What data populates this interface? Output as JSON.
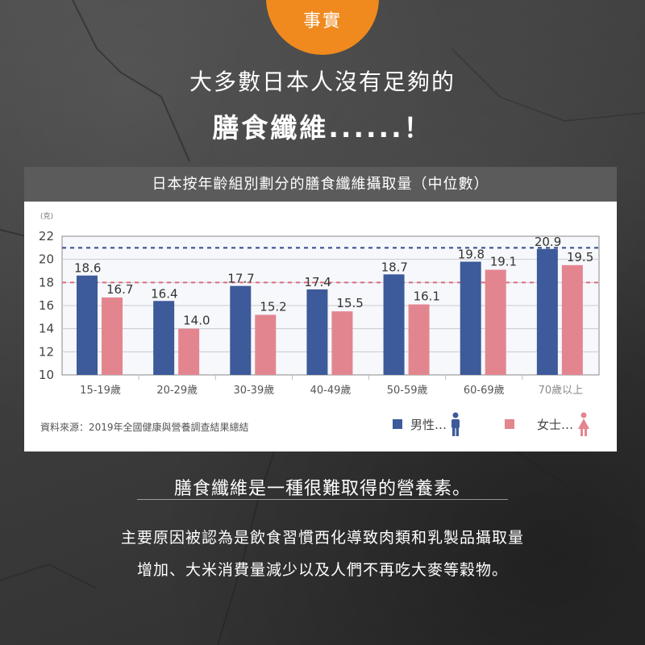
{
  "badge": {
    "label": "事實"
  },
  "headline": {
    "line1": "大多數日本人沒有足夠的",
    "line2": "膳食纖維......！"
  },
  "chart_title": "日本按年齡組別劃分的膳食纖維攝取量（中位數）",
  "source_text": "資料來源：2019年全國健康與營養調查結果總結",
  "legend": {
    "male": {
      "label": "男性…",
      "icon": "male-figure-icon"
    },
    "female": {
      "label": "女士…",
      "icon": "female-figure-icon"
    }
  },
  "footer": {
    "subheading": "膳食纖維是一種很難取得的營養素。",
    "line1": "主要原因被認為是飲食習慣西化導致肉類和乳製品攝取量",
    "line2": "增加、大米消費量減少以及人們不再吃大麥等穀物。"
  },
  "colors": {
    "male": "#3d5a9a",
    "female": "#e3858f",
    "badge": "#f08a1e",
    "male_ref": "#2f4a8a",
    "female_ref": "#e06b7a"
  },
  "chart_data": {
    "type": "bar",
    "title": "日本按年齡組別劃分的膳食纖維攝取量（中位數）",
    "ylabel": "(克)",
    "ylim": [
      10,
      22
    ],
    "yticks": [
      10,
      12,
      14,
      16,
      18,
      20,
      22
    ],
    "categories": [
      "15-19歲",
      "20-29歲",
      "30-39歲",
      "40-49歲",
      "50-59歲",
      "60-69歲",
      "70歲以上"
    ],
    "series": [
      {
        "name": "男性…",
        "values": [
          18.6,
          16.4,
          17.7,
          17.4,
          18.7,
          19.8,
          20.9
        ]
      },
      {
        "name": "女士…",
        "values": [
          16.7,
          14.0,
          15.2,
          15.5,
          16.1,
          19.1,
          19.5
        ]
      }
    ],
    "reference_lines": [
      {
        "series": "男性…",
        "value": 21
      },
      {
        "series": "女士…",
        "value": 18
      }
    ],
    "legend_position": "bottom-right",
    "grid": true
  }
}
